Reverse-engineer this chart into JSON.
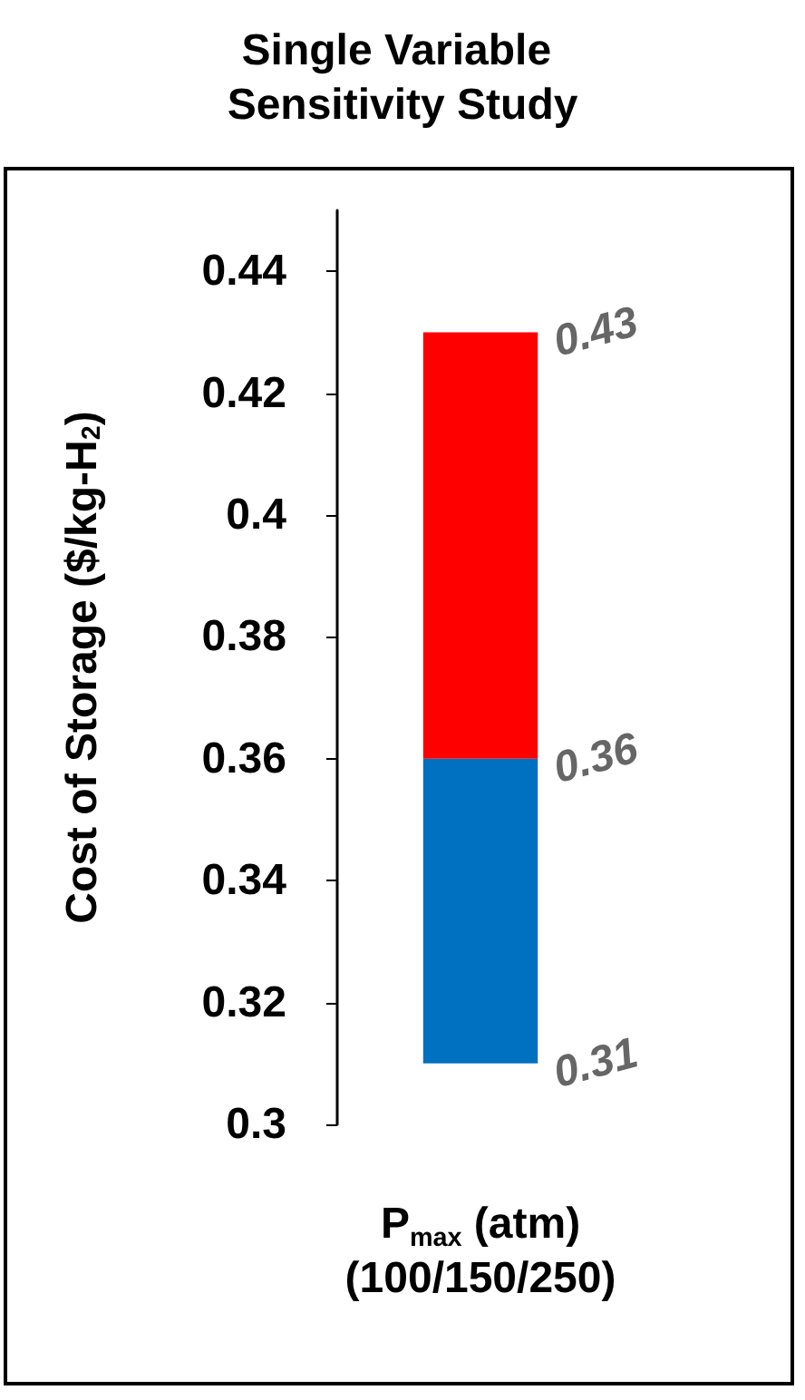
{
  "chart_data": {
    "type": "bar",
    "title": "Single Variable Sensitivity Study",
    "xlabel": "P$_{max}$ (atm)\n(100/150/250)",
    "ylabel": "Cost of Storage ($/kg-H$_{2}$)",
    "categories": [
      null
    ],
    "series": [
      {
        "color": "#0070c0",
        "values": [
          0.05
        ],
        "base": [
          0.31
        ]
      },
      {
        "color": "#ff0000",
        "values": [
          0.07
        ],
        "base": [
          0.36
        ]
      }
    ],
    "ylim": [
      0.3,
      0.45
    ],
    "yticks": [
      0.3,
      0.32,
      0.34,
      0.36,
      0.38,
      0.4,
      0.42,
      0.44
    ],
    "grid": false,
    "annotations": [
      "0.43",
      "0.36",
      "0.31"
    ]
  }
}
